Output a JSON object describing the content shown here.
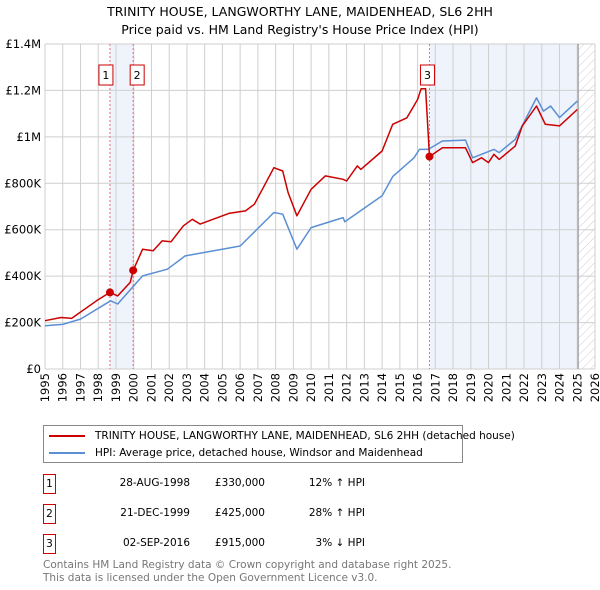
{
  "title_line1": "TRINITY HOUSE, LANGWORTHY LANE, MAIDENHEAD, SL6 2HH",
  "title_line2": "Price paid vs. HM Land Registry's House Price Index (HPI)",
  "colors": {
    "property": "#cc0000",
    "hpi": "#5b8fd4",
    "shade": "#eef3fc"
  },
  "chart_data": {
    "type": "line",
    "xlim": [
      1995,
      2026
    ],
    "ylim": [
      0,
      1400000
    ],
    "x_ticks": [
      "1995",
      "1996",
      "1997",
      "1998",
      "1999",
      "2000",
      "2001",
      "2002",
      "2003",
      "2004",
      "2005",
      "2006",
      "2007",
      "2008",
      "2009",
      "2010",
      "2011",
      "2012",
      "2013",
      "2014",
      "2015",
      "2016",
      "2017",
      "2018",
      "2019",
      "2020",
      "2021",
      "2022",
      "2023",
      "2024",
      "2025",
      "2026"
    ],
    "y_ticks": [
      {
        "v": 0,
        "label": "£0"
      },
      {
        "v": 200000,
        "label": "£200K"
      },
      {
        "v": 400000,
        "label": "£400K"
      },
      {
        "v": 600000,
        "label": "£600K"
      },
      {
        "v": 800000,
        "label": "£800K"
      },
      {
        "v": 1000000,
        "label": "£1M"
      },
      {
        "v": 1200000,
        "label": "£1.2M"
      },
      {
        "v": 1400000,
        "label": "£1.4M"
      }
    ],
    "grid": true,
    "forecast_from": 2025.05,
    "series": [
      {
        "name": "TRINITY HOUSE, LANGWORTHY LANE, MAIDENHEAD, SL6 2HH (detached house)",
        "x": [
          1995,
          1995.9,
          1996.5,
          1997.9,
          1998.66,
          1999.1,
          1999.8,
          1999.97,
          2000.5,
          2001.1,
          2001.6,
          2002.1,
          2002.8,
          2003.3,
          2003.75,
          2005.4,
          2006.3,
          2006.8,
          2007.9,
          2008.4,
          2008.7,
          2009.2,
          2010.0,
          2010.8,
          2011.8,
          2012.0,
          2012.6,
          2012.8,
          2014.0,
          2014.6,
          2015.4,
          2016.0,
          2016.2,
          2016.45,
          2016.67,
          2017.4,
          2018.7,
          2019.1,
          2019.6,
          2020.0,
          2020.3,
          2020.6,
          2021.5,
          2021.9,
          2022.7,
          2023.2,
          2024.0,
          2025.0
        ],
        "y": [
          208000,
          222000,
          218000,
          294000,
          330000,
          315000,
          373000,
          425000,
          516000,
          509000,
          552000,
          548000,
          617000,
          645000,
          624000,
          671000,
          681000,
          710000,
          867000,
          853000,
          760000,
          660000,
          774000,
          832000,
          817000,
          810000,
          875000,
          860000,
          939000,
          1054000,
          1082000,
          1161000,
          1207000,
          1207000,
          915000,
          953000,
          953000,
          889000,
          910000,
          889000,
          925000,
          903000,
          960000,
          1047000,
          1133000,
          1054000,
          1047000,
          1118000
        ]
      },
      {
        "name": "HPI: Average price, detached house, Windsor and Maidenhead",
        "x": [
          1995,
          1996,
          1997,
          1998.7,
          1999.1,
          2000.5,
          2001.9,
          2002.9,
          2006.0,
          2007.9,
          2008.4,
          2009.2,
          2010.0,
          2011.8,
          2011.9,
          2014.0,
          2014.6,
          2015.8,
          2016.1,
          2016.6,
          2017.4,
          2018.7,
          2019.1,
          2020.3,
          2020.6,
          2021.5,
          2022.7,
          2023.1,
          2023.5,
          2024.0,
          2025.0
        ],
        "y": [
          186000,
          192000,
          215000,
          294000,
          280000,
          401000,
          430000,
          487000,
          530000,
          674000,
          667000,
          516000,
          609000,
          652000,
          634000,
          746000,
          829000,
          910000,
          946000,
          946000,
          982000,
          986000,
          910000,
          946000,
          932000,
          989000,
          1168000,
          1111000,
          1133000,
          1083000,
          1154000
        ]
      }
    ],
    "sales": [
      {
        "id": "1",
        "x": 1998.66,
        "y": 330000,
        "date": "28-AUG-1998",
        "price": "£330,000",
        "hpi": "12% ↑ HPI"
      },
      {
        "id": "2",
        "x": 1999.97,
        "y": 425000,
        "date": "21-DEC-1999",
        "price": "£425,000",
        "hpi": "28% ↑ HPI"
      },
      {
        "id": "3",
        "x": 2016.67,
        "y": 915000,
        "date": "02-SEP-2016",
        "price": "£915,000",
        "hpi": "3% ↓ HPI"
      }
    ]
  },
  "footer_line1": "Contains HM Land Registry data © Crown copyright and database right 2025.",
  "footer_line2": "This data is licensed under the Open Government Licence v3.0."
}
